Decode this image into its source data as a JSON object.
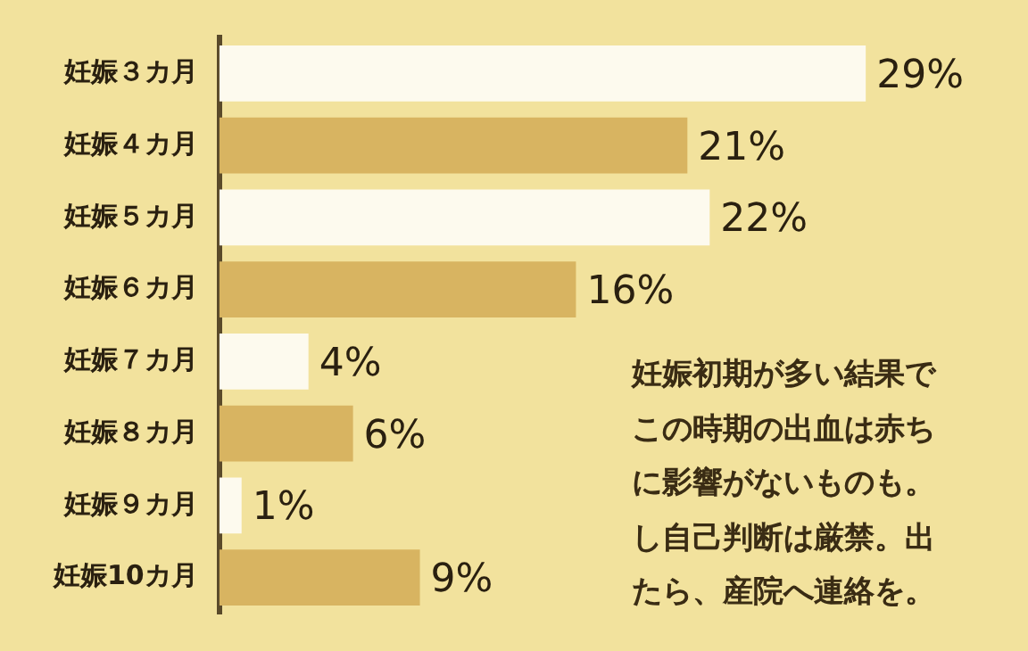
{
  "chart_data": {
    "type": "bar",
    "orientation": "horizontal",
    "categories": [
      "妊娠３カ月",
      "妊娠４カ月",
      "妊娠５カ月",
      "妊娠６カ月",
      "妊娠７カ月",
      "妊娠８カ月",
      "妊娠９カ月",
      "妊娠10カ月"
    ],
    "values": [
      29,
      21,
      22,
      16,
      4,
      6,
      1,
      9
    ],
    "colors": [
      "#fdfaee",
      "#d8b461",
      "#fdfaee",
      "#d8b461",
      "#fdfaee",
      "#d8b461",
      "#fdfaee",
      "#d8b461"
    ],
    "value_labels": [
      "29%",
      "21%",
      "22%",
      "16%",
      "4%",
      "6%",
      "1%",
      "9%"
    ],
    "legend": false,
    "annotations": [
      "妊娠初期が多い結果で",
      "この時期の出血は赤ち",
      "に影響がないものも。",
      "し自己判断は厳禁。出",
      "たら、産院へ連絡を。"
    ]
  }
}
